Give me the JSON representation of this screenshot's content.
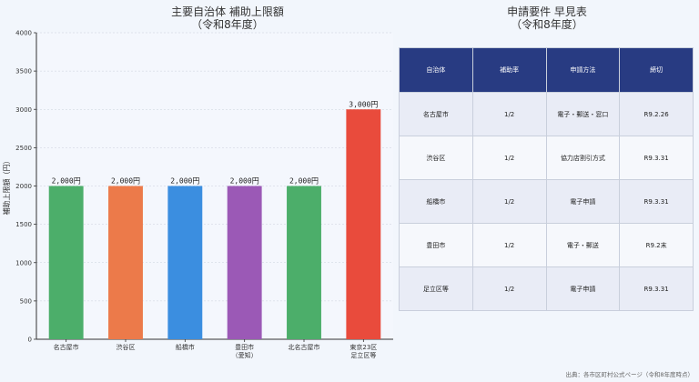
{
  "chart_data": {
    "type": "bar",
    "title_line1": "主要自治体 補助上限額",
    "title_line2": "（令和8年度）",
    "ylabel": "補助上限額（円）",
    "xlabel": "",
    "ylim": [
      0,
      4000
    ],
    "yticks": [
      "0",
      "500",
      "1000",
      "1500",
      "2000",
      "2500",
      "3000",
      "3500",
      "4000"
    ],
    "grid": true,
    "categories": [
      [
        "名古屋市"
      ],
      [
        "渋谷区"
      ],
      [
        "船橋市"
      ],
      [
        "豊田市",
        "（愛知）"
      ],
      [
        "北名古屋市"
      ],
      [
        "東京23区",
        "足立区等"
      ]
    ],
    "values": [
      2000,
      2000,
      2000,
      2000,
      2000,
      3000
    ],
    "value_labels": [
      "2,000円",
      "2,000円",
      "2,000円",
      "2,000円",
      "2,000円",
      "3,000円"
    ],
    "colors": [
      "#4cae6a",
      "#ec7a4a",
      "#3b8ee0",
      "#9b59b6",
      "#4cae6a",
      "#e94b3c"
    ]
  },
  "table": {
    "title_line1": "申請要件 早見表",
    "title_line2": "（令和8年度）",
    "headers": [
      "自治体",
      "補助率",
      "申請方法",
      "締切"
    ],
    "rows": [
      [
        "名古屋市",
        "1/2",
        "電子・郵送・窓口",
        "R9.2.26"
      ],
      [
        "渋谷区",
        "1/2",
        "協力店割引方式",
        "R9.3.31"
      ],
      [
        "船橋市",
        "1/2",
        "電子申請",
        "R9.3.31"
      ],
      [
        "豊田市",
        "1/2",
        "電子・郵送",
        "R9.2末"
      ],
      [
        "足立区等",
        "1/2",
        "電子申請",
        "R9.3.31"
      ]
    ],
    "header_color": "#283b82"
  },
  "source": "出典：各市区町村公式ページ（令和8年度時点）"
}
